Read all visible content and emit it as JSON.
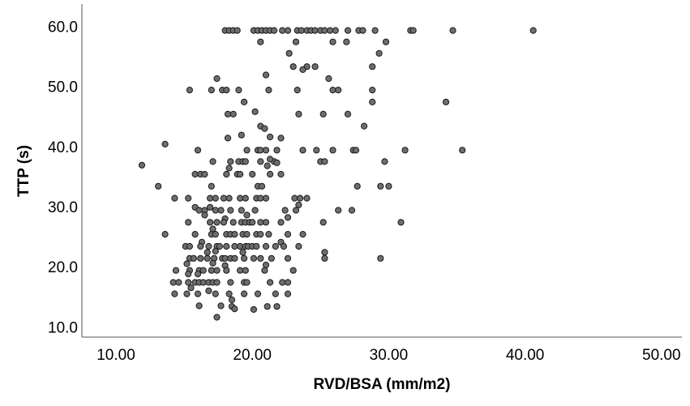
{
  "chart_data": {
    "type": "scatter",
    "title": "",
    "xlabel": "RVD/BSA (mm/m2)",
    "ylabel": "TTP (s)",
    "xlim": [
      7.5,
      51.5
    ],
    "ylim": [
      8.3,
      63.7
    ],
    "xticks": [
      10,
      20,
      30,
      40,
      50
    ],
    "yticks": [
      10,
      20,
      30,
      40,
      50,
      60
    ],
    "xtick_labels": [
      "10.00",
      "20.00",
      "30.00",
      "40.00",
      "50.00"
    ],
    "ytick_labels": [
      "10.0",
      "20.0",
      "30.0",
      "40.0",
      "50.0",
      "60.0"
    ],
    "grid": false,
    "marker_color": "#6e6e6e",
    "marker_edge_color": "#1a1a1a",
    "series": [
      {
        "points": [
          [
            18.0,
            59.3
          ],
          [
            18.3,
            59.3
          ],
          [
            18.6,
            59.3
          ],
          [
            18.9,
            59.3
          ],
          [
            20.1,
            59.3
          ],
          [
            20.4,
            59.3
          ],
          [
            20.7,
            59.3
          ],
          [
            21.0,
            59.3
          ],
          [
            21.3,
            59.3
          ],
          [
            21.6,
            59.3
          ],
          [
            22.2,
            59.3
          ],
          [
            22.6,
            59.3
          ],
          [
            23.3,
            59.3
          ],
          [
            23.6,
            59.3
          ],
          [
            24.0,
            59.3
          ],
          [
            24.3,
            59.3
          ],
          [
            24.6,
            59.3
          ],
          [
            25.0,
            59.3
          ],
          [
            25.3,
            59.3
          ],
          [
            25.7,
            59.3
          ],
          [
            26.1,
            59.3
          ],
          [
            27.0,
            59.3
          ],
          [
            27.8,
            59.3
          ],
          [
            28.1,
            59.3
          ],
          [
            29.0,
            59.3
          ],
          [
            31.6,
            59.3
          ],
          [
            31.8,
            59.3
          ],
          [
            34.7,
            59.3
          ],
          [
            40.6,
            59.3
          ],
          [
            20.6,
            57.4
          ],
          [
            23.2,
            57.4
          ],
          [
            25.9,
            57.4
          ],
          [
            26.9,
            57.4
          ],
          [
            29.8,
            57.4
          ],
          [
            22.7,
            55.5
          ],
          [
            29.3,
            55.5
          ],
          [
            23.0,
            53.3
          ],
          [
            24.0,
            53.3
          ],
          [
            24.6,
            53.3
          ],
          [
            28.8,
            53.3
          ],
          [
            23.7,
            52.8
          ],
          [
            21.0,
            51.9
          ],
          [
            17.4,
            51.3
          ],
          [
            25.6,
            51.3
          ],
          [
            15.4,
            49.4
          ],
          [
            17.0,
            49.4
          ],
          [
            17.8,
            49.4
          ],
          [
            18.1,
            49.4
          ],
          [
            19.0,
            49.4
          ],
          [
            21.2,
            49.4
          ],
          [
            23.3,
            49.4
          ],
          [
            25.9,
            49.4
          ],
          [
            26.3,
            49.4
          ],
          [
            28.8,
            49.4
          ],
          [
            19.4,
            47.4
          ],
          [
            28.8,
            47.4
          ],
          [
            34.2,
            47.4
          ],
          [
            20.2,
            45.8
          ],
          [
            18.2,
            45.4
          ],
          [
            18.6,
            45.4
          ],
          [
            23.4,
            45.4
          ],
          [
            25.2,
            45.4
          ],
          [
            27.0,
            45.4
          ],
          [
            20.6,
            43.4
          ],
          [
            28.2,
            43.4
          ],
          [
            20.9,
            43.0
          ],
          [
            19.2,
            41.9
          ],
          [
            21.3,
            41.6
          ],
          [
            22.1,
            41.4
          ],
          [
            18.2,
            41.4
          ],
          [
            13.6,
            40.4
          ],
          [
            16.0,
            39.4
          ],
          [
            19.6,
            39.4
          ],
          [
            20.4,
            39.4
          ],
          [
            20.6,
            39.4
          ],
          [
            21.0,
            39.4
          ],
          [
            21.8,
            39.4
          ],
          [
            23.7,
            39.4
          ],
          [
            24.7,
            39.4
          ],
          [
            25.9,
            39.4
          ],
          [
            27.4,
            39.4
          ],
          [
            27.6,
            39.4
          ],
          [
            31.2,
            39.4
          ],
          [
            35.4,
            39.4
          ],
          [
            17.1,
            37.5
          ],
          [
            18.4,
            37.5
          ],
          [
            19.0,
            37.5
          ],
          [
            19.3,
            37.5
          ],
          [
            19.5,
            37.5
          ],
          [
            20.6,
            37.5
          ],
          [
            21.6,
            37.5
          ],
          [
            25.0,
            37.5
          ],
          [
            25.3,
            37.5
          ],
          [
            29.7,
            37.5
          ],
          [
            21.3,
            37.9
          ],
          [
            21.8,
            37.3
          ],
          [
            11.9,
            36.9
          ],
          [
            18.3,
            36.4
          ],
          [
            21.1,
            36.8
          ],
          [
            15.8,
            35.4
          ],
          [
            16.2,
            35.4
          ],
          [
            16.5,
            35.4
          ],
          [
            18.1,
            35.4
          ],
          [
            18.9,
            35.4
          ],
          [
            19.1,
            35.4
          ],
          [
            20.0,
            35.4
          ],
          [
            21.3,
            35.4
          ],
          [
            22.1,
            35.4
          ],
          [
            13.1,
            33.4
          ],
          [
            17.0,
            33.4
          ],
          [
            20.4,
            33.4
          ],
          [
            20.7,
            33.4
          ],
          [
            27.7,
            33.4
          ],
          [
            29.4,
            33.4
          ],
          [
            30.0,
            33.4
          ],
          [
            14.3,
            31.4
          ],
          [
            15.3,
            31.4
          ],
          [
            16.9,
            31.4
          ],
          [
            17.3,
            31.4
          ],
          [
            17.9,
            31.4
          ],
          [
            18.3,
            31.4
          ],
          [
            19.1,
            31.4
          ],
          [
            19.5,
            31.4
          ],
          [
            20.3,
            31.4
          ],
          [
            20.6,
            31.4
          ],
          [
            21.0,
            31.4
          ],
          [
            23.1,
            31.4
          ],
          [
            23.5,
            31.4
          ],
          [
            24.0,
            31.4
          ],
          [
            15.8,
            29.9
          ],
          [
            16.9,
            29.9
          ],
          [
            23.4,
            30.3
          ],
          [
            16.1,
            29.4
          ],
          [
            16.5,
            29.4
          ],
          [
            17.3,
            29.4
          ],
          [
            17.7,
            29.4
          ],
          [
            18.4,
            29.4
          ],
          [
            19.2,
            29.4
          ],
          [
            20.2,
            29.4
          ],
          [
            22.4,
            29.4
          ],
          [
            23.2,
            29.4
          ],
          [
            26.3,
            29.4
          ],
          [
            27.3,
            29.4
          ],
          [
            16.5,
            28.6
          ],
          [
            19.6,
            28.6
          ],
          [
            18.0,
            28.0
          ],
          [
            22.6,
            28.2
          ],
          [
            15.3,
            27.4
          ],
          [
            16.9,
            27.4
          ],
          [
            17.4,
            27.4
          ],
          [
            17.9,
            27.4
          ],
          [
            18.6,
            27.4
          ],
          [
            19.2,
            27.4
          ],
          [
            19.5,
            27.4
          ],
          [
            19.8,
            27.4
          ],
          [
            20.0,
            27.4
          ],
          [
            20.6,
            27.4
          ],
          [
            21.0,
            27.4
          ],
          [
            22.1,
            27.4
          ],
          [
            25.2,
            27.4
          ],
          [
            30.9,
            27.4
          ],
          [
            17.1,
            26.3
          ],
          [
            13.6,
            25.4
          ],
          [
            15.8,
            25.4
          ],
          [
            17.0,
            25.4
          ],
          [
            17.3,
            25.4
          ],
          [
            18.1,
            25.4
          ],
          [
            18.4,
            25.4
          ],
          [
            18.7,
            25.4
          ],
          [
            19.3,
            25.4
          ],
          [
            19.6,
            25.4
          ],
          [
            20.3,
            25.4
          ],
          [
            20.6,
            25.4
          ],
          [
            21.2,
            25.4
          ],
          [
            22.6,
            25.4
          ],
          [
            23.7,
            25.4
          ],
          [
            16.3,
            24.1
          ],
          [
            22.1,
            24.1
          ],
          [
            15.1,
            23.4
          ],
          [
            15.4,
            23.4
          ],
          [
            16.2,
            23.4
          ],
          [
            16.8,
            23.4
          ],
          [
            17.4,
            23.4
          ],
          [
            17.6,
            23.4
          ],
          [
            18.1,
            23.4
          ],
          [
            18.7,
            23.4
          ],
          [
            19.1,
            23.4
          ],
          [
            19.5,
            23.4
          ],
          [
            19.7,
            23.4
          ],
          [
            20.0,
            23.4
          ],
          [
            20.3,
            23.4
          ],
          [
            21.0,
            23.4
          ],
          [
            21.7,
            23.4
          ],
          [
            22.3,
            23.4
          ],
          [
            23.4,
            23.4
          ],
          [
            16.7,
            22.4
          ],
          [
            17.3,
            22.6
          ],
          [
            19.3,
            22.4
          ],
          [
            25.3,
            22.4
          ],
          [
            15.4,
            21.4
          ],
          [
            15.7,
            21.4
          ],
          [
            16.2,
            21.4
          ],
          [
            16.7,
            21.4
          ],
          [
            17.2,
            21.4
          ],
          [
            17.8,
            21.4
          ],
          [
            18.0,
            21.4
          ],
          [
            18.4,
            21.4
          ],
          [
            18.7,
            21.4
          ],
          [
            19.4,
            21.4
          ],
          [
            20.1,
            21.4
          ],
          [
            20.6,
            21.4
          ],
          [
            21.4,
            21.4
          ],
          [
            22.6,
            21.4
          ],
          [
            25.3,
            21.4
          ],
          [
            29.4,
            21.4
          ],
          [
            15.2,
            20.5
          ],
          [
            17.1,
            20.6
          ],
          [
            18.0,
            20.2
          ],
          [
            21.0,
            20.3
          ],
          [
            14.4,
            19.4
          ],
          [
            15.4,
            19.4
          ],
          [
            16.1,
            19.4
          ],
          [
            16.4,
            19.4
          ],
          [
            17.0,
            19.4
          ],
          [
            17.4,
            19.4
          ],
          [
            18.1,
            19.4
          ],
          [
            19.1,
            19.4
          ],
          [
            19.5,
            19.4
          ],
          [
            20.9,
            19.4
          ],
          [
            23.0,
            19.4
          ],
          [
            15.3,
            18.8
          ],
          [
            16.0,
            18.8
          ],
          [
            14.2,
            17.4
          ],
          [
            14.6,
            17.4
          ],
          [
            15.3,
            17.4
          ],
          [
            15.8,
            17.4
          ],
          [
            16.1,
            17.4
          ],
          [
            16.4,
            17.4
          ],
          [
            16.8,
            17.4
          ],
          [
            17.1,
            17.4
          ],
          [
            17.4,
            17.4
          ],
          [
            18.4,
            17.4
          ],
          [
            19.4,
            17.4
          ],
          [
            19.6,
            17.4
          ],
          [
            21.3,
            17.4
          ],
          [
            22.2,
            17.4
          ],
          [
            22.6,
            17.4
          ],
          [
            14.3,
            15.5
          ],
          [
            15.2,
            15.5
          ],
          [
            16.0,
            15.5
          ],
          [
            17.3,
            15.5
          ],
          [
            18.3,
            15.5
          ],
          [
            19.4,
            15.5
          ],
          [
            20.4,
            15.5
          ],
          [
            21.7,
            15.5
          ],
          [
            22.6,
            15.5
          ],
          [
            16.8,
            16.0
          ],
          [
            15.5,
            16.5
          ],
          [
            18.5,
            14.5
          ],
          [
            16.1,
            13.5
          ],
          [
            17.7,
            13.5
          ],
          [
            18.5,
            13.4
          ],
          [
            21.1,
            13.4
          ],
          [
            21.8,
            13.4
          ],
          [
            18.7,
            13.0
          ],
          [
            20.1,
            12.9
          ],
          [
            17.4,
            11.6
          ]
        ]
      }
    ]
  }
}
